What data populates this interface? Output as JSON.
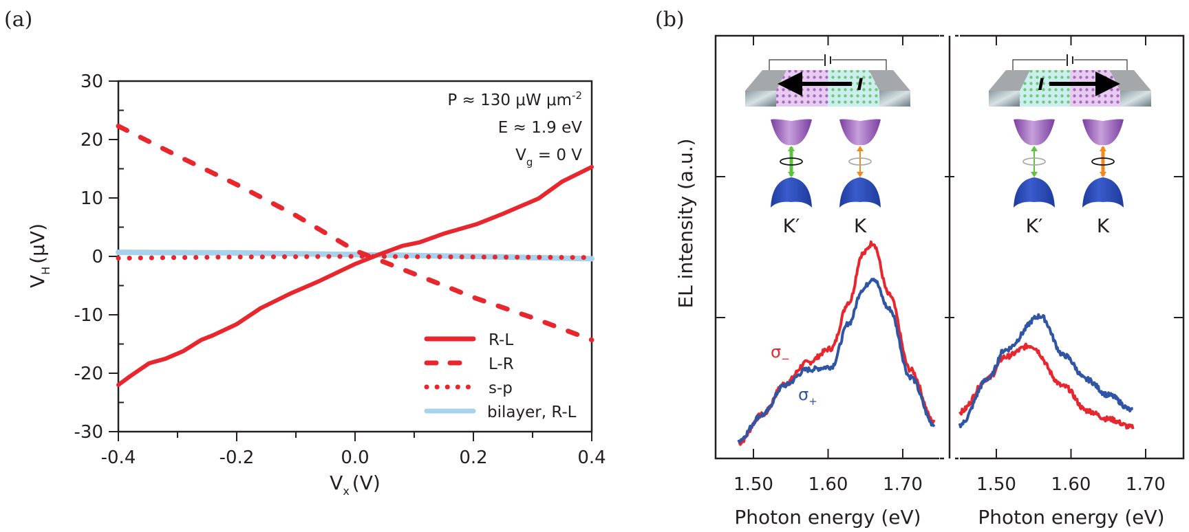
{
  "panels": {
    "a_label": "(a)",
    "b_label": "(b)"
  },
  "chart_data": [
    {
      "id": "a",
      "type": "line",
      "xlabel": "V",
      "xlabel_sub": "x",
      "xlabel_unit": "(V)",
      "ylabel": "V",
      "ylabel_sub": "H",
      "ylabel_unit": "(μV)",
      "xlim": [
        -0.4,
        0.4
      ],
      "ylim": [
        -30,
        30
      ],
      "xticks": [
        -0.4,
        -0.2,
        0.0,
        0.2,
        0.4
      ],
      "xtick_labels": [
        "-0.4",
        "-0.2",
        "0.0",
        "0.2",
        "0.4"
      ],
      "xminor": [
        -0.3,
        -0.1,
        0.1,
        0.3
      ],
      "yticks": [
        -30,
        -20,
        -10,
        0,
        10,
        20,
        30
      ],
      "ytick_labels": [
        "-30",
        "-20",
        "-10",
        "0",
        "10",
        "20",
        "30"
      ],
      "yminor": [
        -25,
        -15,
        -5,
        5,
        15,
        25
      ],
      "grid": false,
      "annotations": [
        {
          "text": "P ≈ 130 μW μm",
          "sup": "-2"
        },
        {
          "text": "E ≈ 1.9 eV"
        },
        {
          "text": "V",
          "sub": "g",
          "rest": " = 0 V"
        }
      ],
      "legend_position": "bottom-right",
      "series": [
        {
          "name": "R-L",
          "style": "solid",
          "color": "#e8262d",
          "x": [
            -0.4,
            -0.38,
            -0.348,
            -0.32,
            -0.29,
            -0.26,
            -0.24,
            -0.2,
            -0.16,
            -0.108,
            -0.06,
            0.0,
            0.04,
            0.08,
            0.109,
            0.15,
            0.205,
            0.25,
            0.31,
            0.35,
            0.4
          ],
          "y": [
            -22.0,
            -20.5,
            -18.3,
            -17.5,
            -16.2,
            -14.3,
            -13.5,
            -11.6,
            -8.9,
            -6.3,
            -4.2,
            -1.3,
            0.3,
            1.8,
            2.4,
            3.9,
            5.5,
            7.3,
            9.9,
            12.8,
            15.3
          ]
        },
        {
          "name": "L-R",
          "style": "dashed",
          "color": "#e8262d",
          "x": [
            -0.4,
            -0.3,
            -0.2,
            -0.1,
            0.0,
            0.05,
            0.1,
            0.205,
            0.3,
            0.4
          ],
          "y": [
            22.3,
            17.2,
            12.3,
            7.0,
            1.0,
            -1.0,
            -3.0,
            -7.2,
            -10.5,
            -14.3
          ]
        },
        {
          "name": "s-p",
          "style": "dotted",
          "color": "#e8262d",
          "x": [
            -0.4,
            -0.2,
            0.0,
            0.2,
            0.4
          ],
          "y": [
            -0.3,
            -0.1,
            0.0,
            -0.1,
            -0.2
          ]
        },
        {
          "name": "bilayer, R-L",
          "style": "solid",
          "color": "#a8d2ec",
          "x": [
            -0.4,
            -0.2,
            0.0,
            0.2,
            0.4
          ],
          "y": [
            0.7,
            0.6,
            0.3,
            0.0,
            -0.4
          ]
        }
      ]
    },
    {
      "id": "b-left",
      "type": "line",
      "xlabel": "Photon energy (eV)",
      "ylabel": "EL intensity (a.u.)",
      "xlim": [
        1.45,
        1.76
      ],
      "ylim": [
        0,
        3
      ],
      "xticks": [
        1.5,
        1.6,
        1.7
      ],
      "xtick_labels": [
        "1.50",
        "1.60",
        "1.70"
      ],
      "yticks": [
        1,
        2
      ],
      "grid": false,
      "inset": {
        "current_direction": "left",
        "arrow_label": "I",
        "valleys": [
          "K′",
          "K"
        ],
        "bright_valley": "K′"
      },
      "series_labels": [
        {
          "text": "σ",
          "sub": "−",
          "color": "#e8262d"
        },
        {
          "text": "σ",
          "sub": "+",
          "color": "#2f55a4"
        }
      ],
      "series": [
        {
          "name": "σ−",
          "color": "#e8262d",
          "x": [
            1.48,
            1.512,
            1.542,
            1.572,
            1.604,
            1.628,
            1.646,
            1.66,
            1.682,
            1.71,
            1.742
          ],
          "y": [
            0.11,
            0.31,
            0.53,
            0.68,
            0.78,
            1.11,
            1.45,
            1.53,
            1.16,
            0.63,
            0.26
          ]
        },
        {
          "name": "σ+",
          "color": "#2f55a4",
          "x": [
            1.48,
            1.512,
            1.542,
            1.572,
            1.604,
            1.628,
            1.646,
            1.66,
            1.682,
            1.71,
            1.742
          ],
          "y": [
            0.13,
            0.31,
            0.52,
            0.63,
            0.65,
            0.96,
            1.2,
            1.28,
            1.06,
            0.58,
            0.24
          ]
        }
      ]
    },
    {
      "id": "b-right",
      "type": "line",
      "xlabel": "Photon energy (eV)",
      "xlim": [
        1.44,
        1.75
      ],
      "ylim": [
        0,
        3
      ],
      "xticks": [
        1.5,
        1.6,
        1.7
      ],
      "xtick_labels": [
        "1.50",
        "1.60",
        "1.70"
      ],
      "yticks": [
        1,
        2
      ],
      "grid": false,
      "inset": {
        "current_direction": "right",
        "arrow_label": "I",
        "valleys": [
          "K′",
          "K"
        ],
        "bright_valley": "K"
      },
      "series": [
        {
          "name": "σ−",
          "color": "#e8262d",
          "x": [
            1.451,
            1.49,
            1.511,
            1.545,
            1.591,
            1.621,
            1.65,
            1.683
          ],
          "y": [
            0.33,
            0.57,
            0.72,
            0.8,
            0.51,
            0.34,
            0.28,
            0.22
          ]
        },
        {
          "name": "σ+",
          "color": "#2f55a4",
          "x": [
            1.451,
            1.49,
            1.511,
            1.559,
            1.591,
            1.621,
            1.65,
            1.683
          ],
          "y": [
            0.24,
            0.57,
            0.77,
            1.01,
            0.73,
            0.56,
            0.45,
            0.34
          ]
        }
      ]
    }
  ]
}
